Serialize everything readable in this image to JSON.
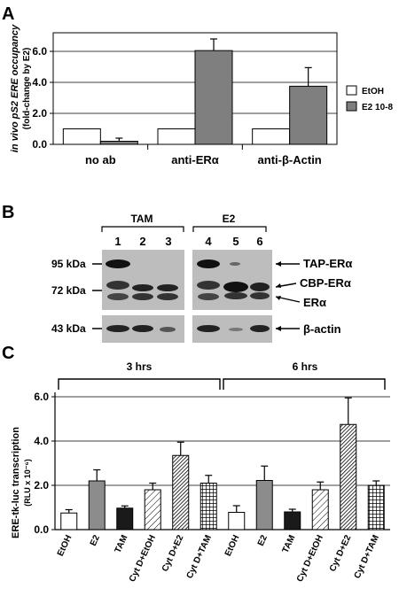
{
  "chart_data": [
    {
      "panel": "A",
      "type": "bar",
      "ylabel_line1": "in vivo pS2 ERE occupancy",
      "ylabel_line2": "(fold-change by E2)",
      "categories": [
        "no ab",
        "anti-ERα",
        "anti-β-Actin"
      ],
      "series": [
        {
          "name": "EtOH",
          "values": [
            1.0,
            1.0,
            1.0
          ],
          "errors": [
            0,
            0,
            0
          ],
          "color": "#ffffff",
          "pattern": "none"
        },
        {
          "name": "E2 10-8",
          "values": [
            0.2,
            6.05,
            3.75
          ],
          "errors": [
            0.2,
            0.75,
            1.2
          ],
          "color": "#7f7f7f",
          "pattern": "none"
        }
      ],
      "yticks": [
        "0.0",
        "2.0",
        "4.0",
        "6.0"
      ],
      "ylim": [
        0,
        7.2
      ],
      "grid": true,
      "legend": "right"
    },
    {
      "panel": "C",
      "type": "bar",
      "ylabel_line1": "ERE-tk-luc transcription",
      "ylabel_line2": "(RLU x 10⁻⁶)",
      "groups": [
        "3 hrs",
        "6 hrs"
      ],
      "categories": [
        "EtOH",
        "E2",
        "TAM",
        "Cyt D+EtOH",
        "Cyt D+E2",
        "Cyt D+TAM",
        "EtOH",
        "E2",
        "TAM",
        "Cyt D+EtOH",
        "Cyt D+E2",
        "Cyt D+TAM"
      ],
      "values": [
        0.75,
        2.2,
        0.97,
        1.8,
        3.35,
        2.1,
        0.78,
        2.22,
        0.8,
        1.8,
        4.75,
        2.0
      ],
      "errors": [
        0.15,
        0.5,
        0.1,
        0.3,
        0.6,
        0.35,
        0.3,
        0.65,
        0.12,
        0.35,
        1.2,
        0.2
      ],
      "fills": [
        "#ffffff",
        "#8c8c8c",
        "#1a1a1a",
        "diag-light",
        "diag-dense",
        "grid",
        "#ffffff",
        "#8c8c8c",
        "#1a1a1a",
        "diag-light",
        "diag-dense",
        "grid"
      ],
      "yticks": [
        "0.0",
        "2.0",
        "4.0",
        "6.0"
      ],
      "ylim": [
        0,
        6.2
      ],
      "grid": true
    }
  ],
  "panels": {
    "a_label": "A",
    "b_label": "B",
    "c_label": "C"
  },
  "blot": {
    "group_left": "TAM",
    "group_right": "E2",
    "lanes": [
      "1",
      "2",
      "3",
      "4",
      "5",
      "6"
    ],
    "markers": [
      "95 kDa",
      "72 kDa",
      "43 kDa"
    ],
    "bands": [
      "TAP-ERα",
      "CBP-ERα",
      "ERα",
      "β-actin"
    ]
  }
}
